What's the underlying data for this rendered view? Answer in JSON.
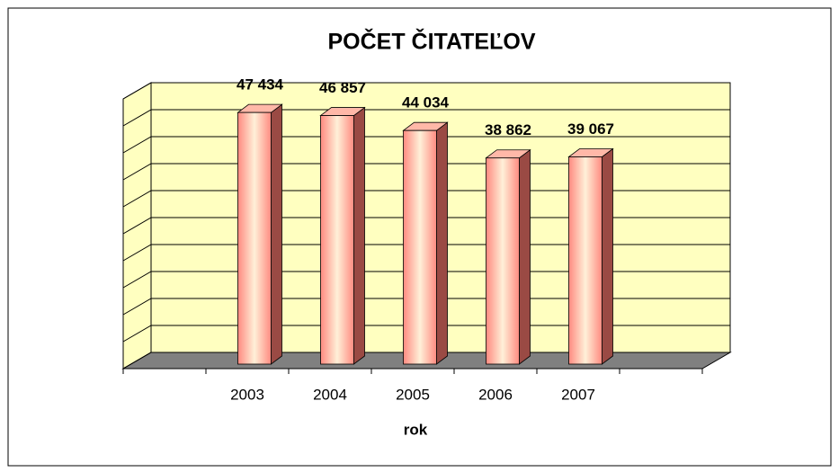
{
  "chart_data": {
    "type": "bar3d",
    "title": "POČET ČITATEĽOV",
    "x_label": "rok",
    "categories": [
      null,
      "2003",
      "2004",
      "2005",
      "2006",
      "2007",
      null
    ],
    "values": [
      null,
      47434,
      46857,
      44034,
      38862,
      39067,
      null
    ],
    "value_labels": [
      null,
      "47 434",
      "46 857",
      "44 034",
      "38 862",
      "39 067",
      null
    ],
    "color": "#ff8a80",
    "ylim": [
      0,
      50000
    ],
    "yticks": [
      0,
      5000,
      10000,
      15000,
      20000,
      25000,
      30000,
      35000,
      40000,
      45000,
      50000
    ],
    "grid": true
  }
}
